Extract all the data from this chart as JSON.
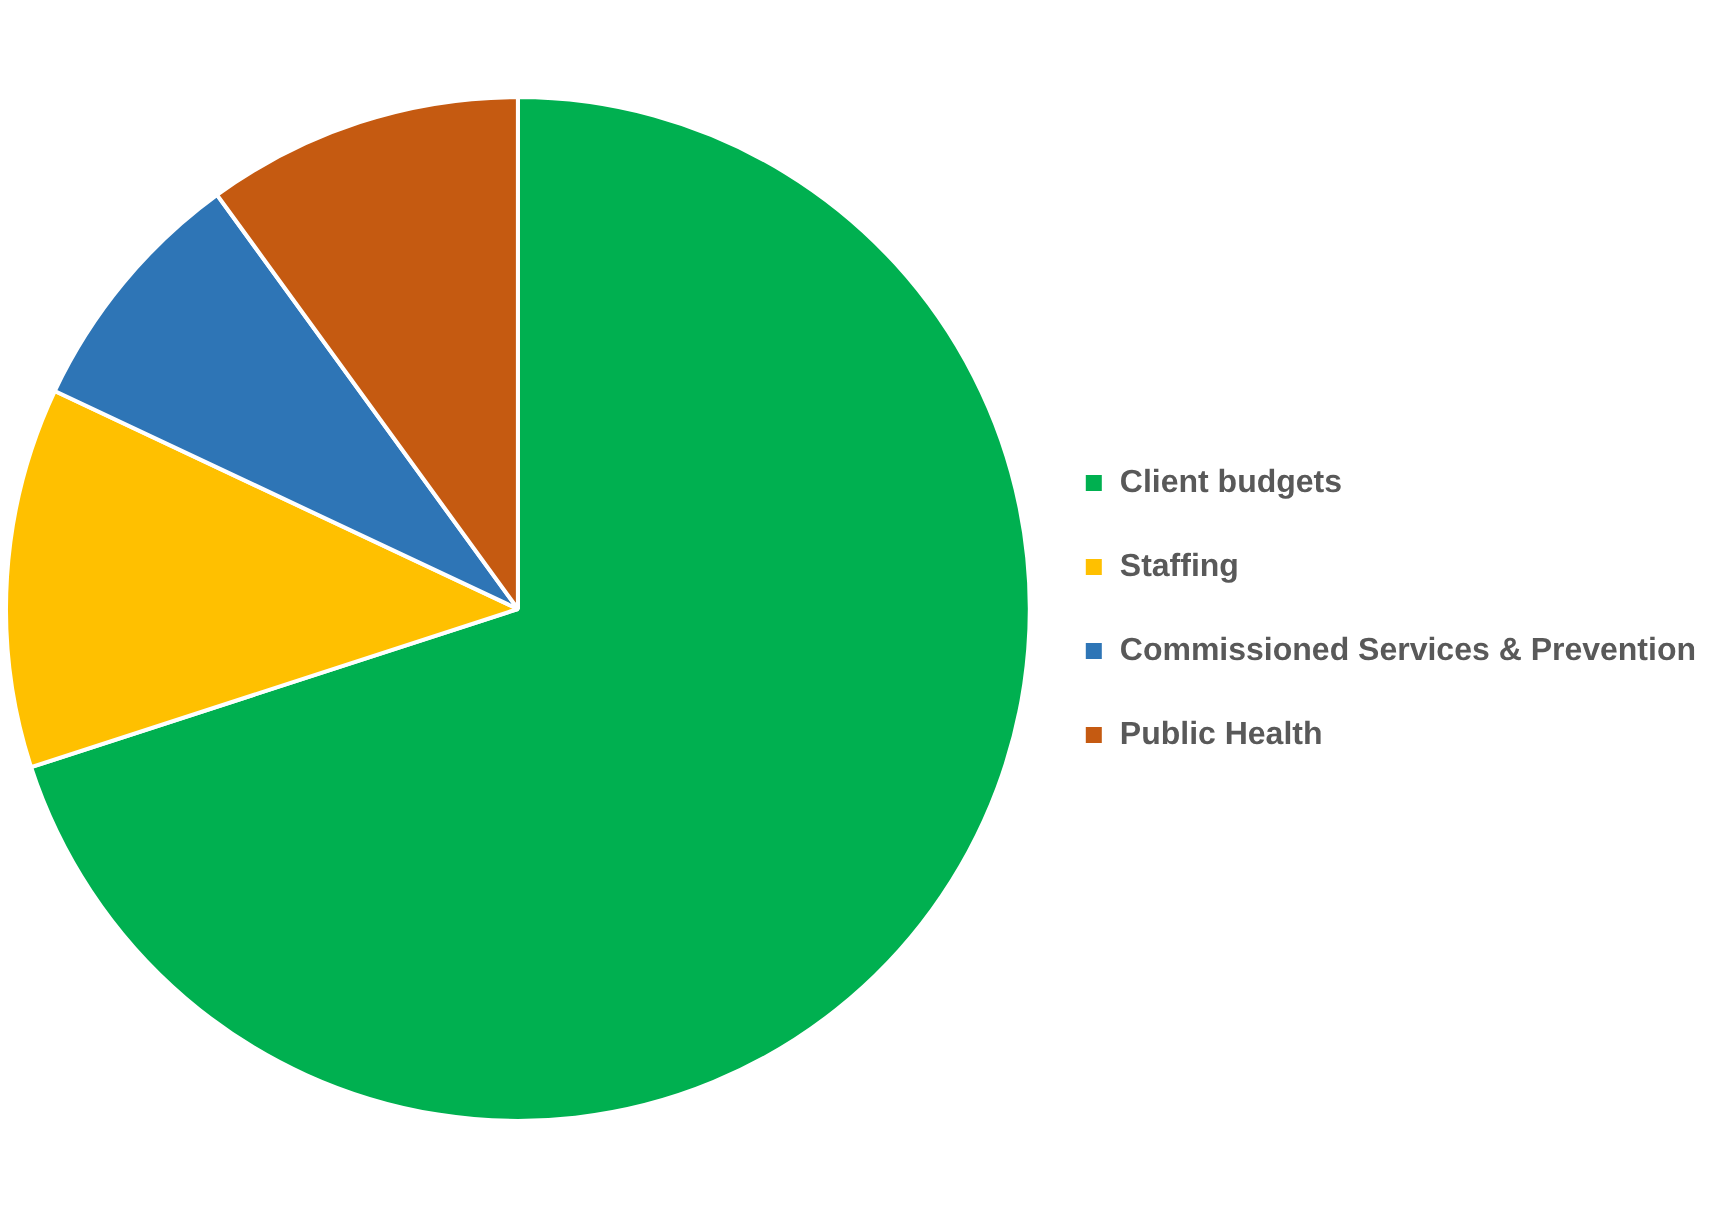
{
  "chart_data": {
    "type": "pie",
    "categories": [
      "Client budgets",
      "Staffing",
      "Commissioned Services & Prevention",
      "Public Health"
    ],
    "values": [
      70,
      12,
      8,
      10
    ],
    "colors": [
      "#00b050",
      "#ffc000",
      "#2e75b6",
      "#c55a11"
    ],
    "legend": "right"
  }
}
